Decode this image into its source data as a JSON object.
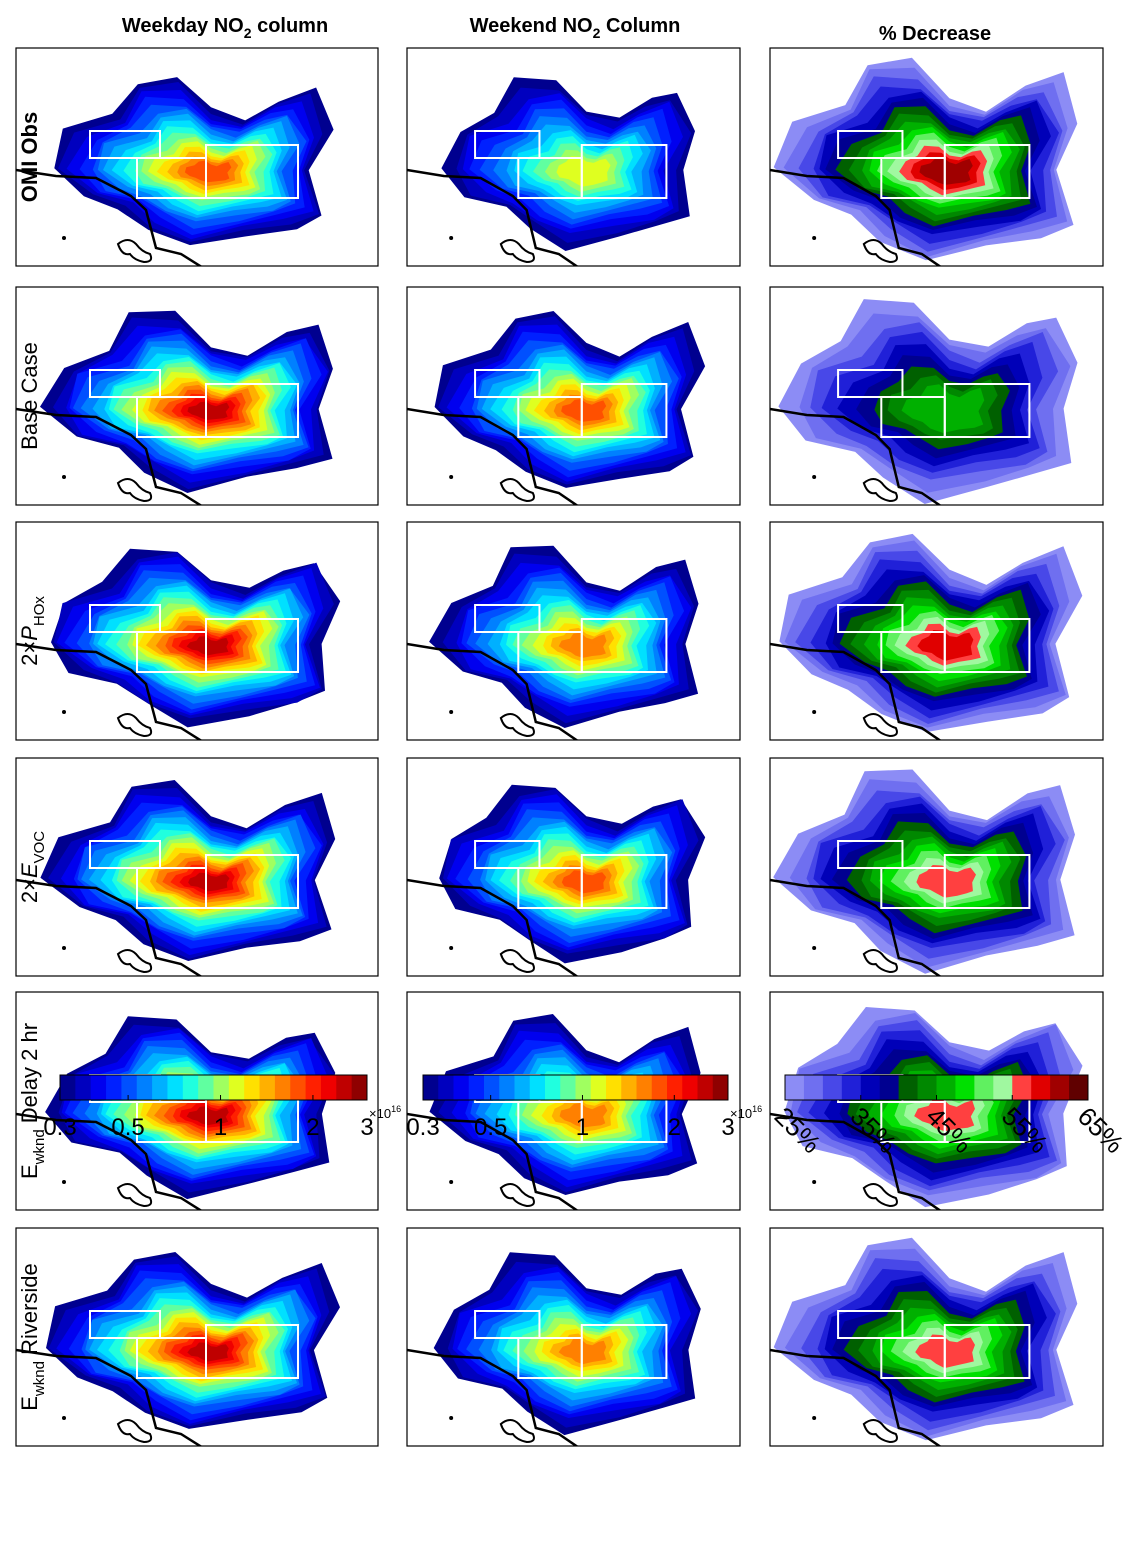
{
  "columns": [
    [
      "Weekday NO",
      "2",
      " column"
    ],
    [
      "Weekend NO",
      "2",
      " Column"
    ],
    [
      "% Decrease"
    ]
  ],
  "rows": [
    {
      "label": [
        "OMI Obs"
      ]
    },
    {
      "label": [
        "Base Case"
      ]
    },
    {
      "label": [
        "2×",
        "P",
        "HOx"
      ]
    },
    {
      "label": [
        "2×",
        "E",
        "VOC"
      ]
    },
    {
      "label": [
        "E",
        "wknd",
        " Delay 2 hr"
      ]
    },
    {
      "label": [
        "E",
        "wknd",
        " Riverside"
      ]
    }
  ],
  "colorbars": [
    {
      "scale": "log",
      "lim": [
        0.3,
        3
      ],
      "ticks": [
        0.3,
        0.5,
        1,
        2,
        3
      ],
      "multiplier": [
        "×10",
        "16"
      ],
      "colors": [
        "#00008f",
        "#0000bf",
        "#0000ef",
        "#0020ff",
        "#0050ff",
        "#0080ff",
        "#00b0ff",
        "#00e0ff",
        "#20ffdf",
        "#60ffa0",
        "#a0ff60",
        "#dfff20",
        "#ffe000",
        "#ffb000",
        "#ff8000",
        "#ff5000",
        "#ff2000",
        "#ef0000",
        "#bf0000",
        "#8f0000"
      ]
    },
    {
      "scale": "log",
      "lim": [
        0.3,
        3
      ],
      "ticks": [
        0.3,
        0.5,
        1,
        2,
        3
      ],
      "multiplier": [
        "×10",
        "16"
      ],
      "colors": [
        "#00008f",
        "#0000bf",
        "#0000ef",
        "#0020ff",
        "#0050ff",
        "#0080ff",
        "#00b0ff",
        "#00e0ff",
        "#20ffdf",
        "#60ffa0",
        "#a0ff60",
        "#dfff20",
        "#ffe000",
        "#ffb000",
        "#ff8000",
        "#ff5000",
        "#ff2000",
        "#ef0000",
        "#bf0000",
        "#8f0000"
      ]
    },
    {
      "scale": "linear",
      "lim": [
        25,
        65
      ],
      "ticks": [
        {
          "value": 25,
          "label": "25%"
        },
        {
          "value": 35,
          "label": "35%"
        },
        {
          "value": 45,
          "label": "45%"
        },
        {
          "value": 55,
          "label": "55%"
        },
        {
          "value": 65,
          "label": "65%"
        }
      ],
      "colors": [
        "#8c8cf5",
        "#6f6ff0",
        "#4848e8",
        "#2020d8",
        "#0000b8",
        "#000090",
        "#006000",
        "#008800",
        "#00b000",
        "#00e000",
        "#60f060",
        "#a0f8a0",
        "#ff4040",
        "#e00000",
        "#a00000",
        "#600000"
      ]
    }
  ]
}
